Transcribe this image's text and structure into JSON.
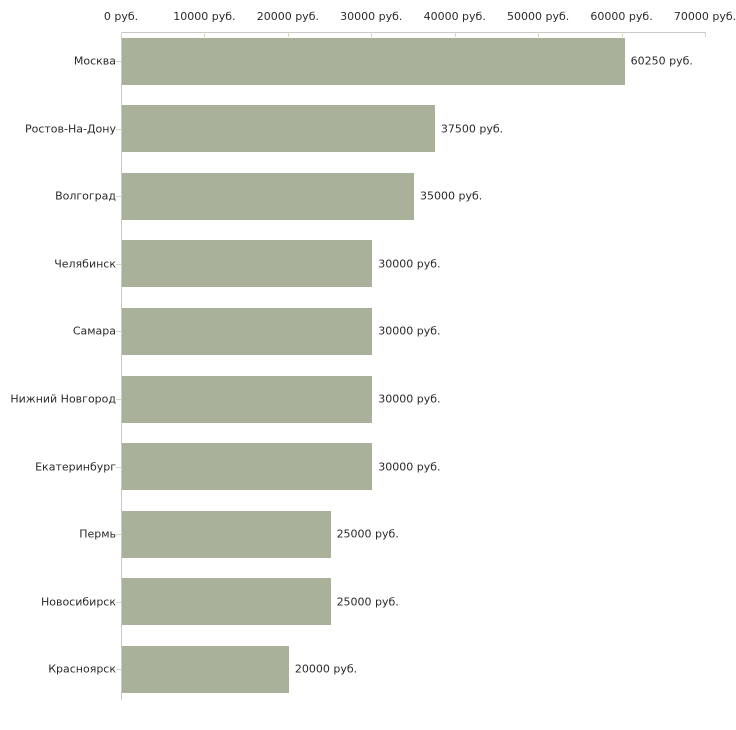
{
  "chart_data": {
    "type": "bar",
    "orientation": "horizontal",
    "categories": [
      "Москва",
      "Ростов-На-Дону",
      "Волгоград",
      "Челябинск",
      "Самара",
      "Нижний Новгород",
      "Екатеринбург",
      "Пермь",
      "Новосибирск",
      "Красноярск"
    ],
    "values": [
      60250,
      37500,
      35000,
      30000,
      30000,
      30000,
      30000,
      25000,
      25000,
      20000
    ],
    "value_labels": [
      "60250 руб.",
      "37500 руб.",
      "35000 руб.",
      "30000 руб.",
      "30000 руб.",
      "30000 руб.",
      "30000 руб.",
      "25000 руб.",
      "25000 руб.",
      "20000 руб."
    ],
    "x_axis": {
      "position": "top",
      "min": 0,
      "max": 70000,
      "tick_values": [
        0,
        10000,
        20000,
        30000,
        40000,
        50000,
        60000,
        70000
      ],
      "tick_labels": [
        "0 руб.",
        "10000 руб.",
        "20000 руб.",
        "30000 руб.",
        "40000 руб.",
        "50000 руб.",
        "60000 руб.",
        "70000 руб."
      ]
    },
    "grid": false,
    "legend": false,
    "title": "",
    "colors": {
      "bar": "#aab19a",
      "axis_line": "#c9c9c9",
      "tick_mark": "#d6d9bf",
      "text": "#2b2b2b",
      "background": "#ffffff"
    }
  }
}
